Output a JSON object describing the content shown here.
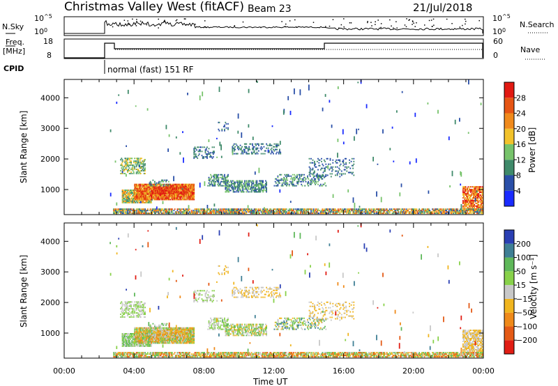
{
  "header": {
    "site": "Christmas Valley West (fitACF)",
    "beam": "Beam 23",
    "date": "21/Jul/2018"
  },
  "top_panels": {
    "nsky_label": "N.Sky",
    "nsky_ticks": [
      "10^5",
      "10^0"
    ],
    "nsearch_label": "N.Search",
    "nsearch_ticks": [
      "10^5",
      "10^0"
    ],
    "freq_label_1": "Freq.",
    "freq_label_2": "[MHz]",
    "freq_ticks": [
      "18",
      "8"
    ],
    "nave_label": "Nave",
    "nave_ticks": [
      "60",
      "0"
    ],
    "cpid_label": "CPID",
    "cpid_text": "normal (fast) 151 RF"
  },
  "colors": {
    "power": [
      "#1a2bff",
      "#2a4fa8",
      "#3f8a6a",
      "#77c36b",
      "#f2c22b",
      "#f08a1c",
      "#e65514",
      "#e11912"
    ],
    "velocity": [
      "#2a3fb3",
      "#3f7f95",
      "#5fb85a",
      "#88d14a",
      "#c8c8c8",
      "#f0b51f",
      "#ef8a1a",
      "#e45a16",
      "#e11d14"
    ]
  },
  "chart_data": [
    {
      "type": "heatmap",
      "name": "power",
      "ylabel": "Slant Range [km]",
      "yticks": [
        "1000",
        "2000",
        "3000",
        "4000"
      ],
      "ylim": [
        180,
        4600
      ],
      "xlim_hours": [
        0,
        24
      ],
      "colorbar_label": "Power [dB]",
      "colorbar_ticks": [
        "4",
        "8",
        "12",
        "16",
        "20",
        "24",
        "28"
      ],
      "colorbar_range": [
        0,
        32
      ]
    },
    {
      "type": "heatmap",
      "name": "velocity",
      "ylabel": "Slant Range [km]",
      "yticks": [
        "1000",
        "2000",
        "3000",
        "4000"
      ],
      "ylim": [
        180,
        4600
      ],
      "xlim_hours": [
        0,
        24
      ],
      "colorbar_label": "Velocity [m s⁻¹]",
      "colorbar_ticks": [
        "200",
        "100",
        "50",
        "15",
        "−15",
        "−50",
        "−100",
        "−200"
      ],
      "xticks": [
        "00:00",
        "04:00",
        "08:00",
        "12:00",
        "16:00",
        "20:00",
        "00:00"
      ],
      "xlabel": "Time UT"
    }
  ]
}
